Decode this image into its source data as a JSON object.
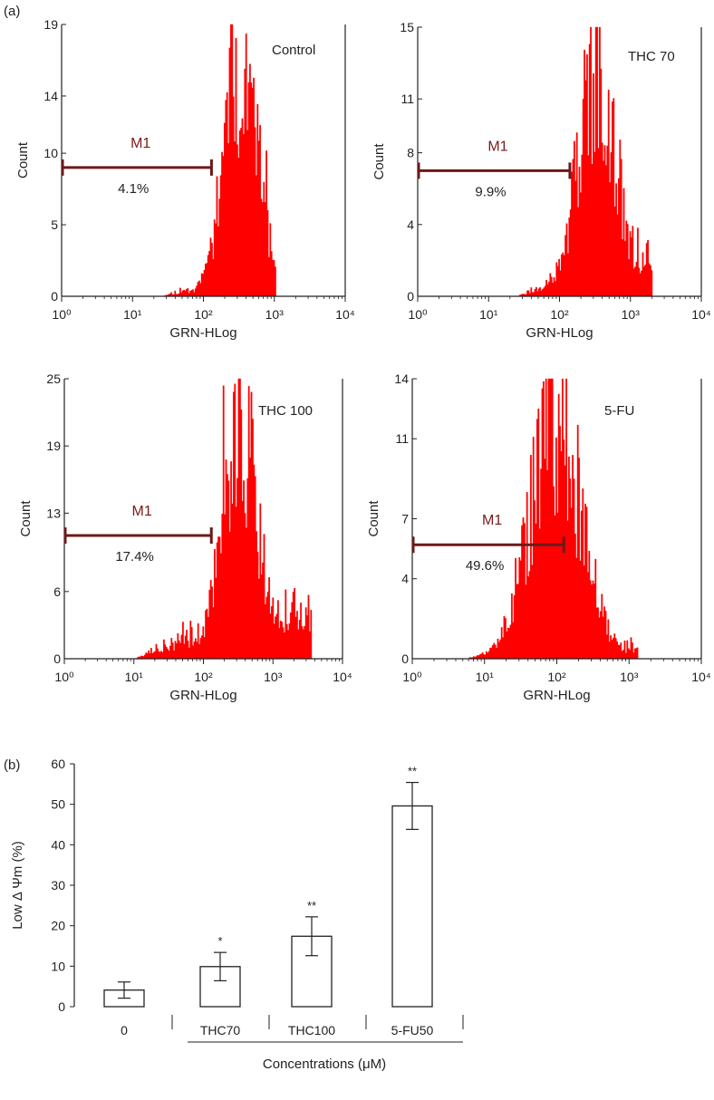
{
  "panel_labels": {
    "a": "(a)",
    "b": "(b)"
  },
  "colors": {
    "histogram": "#ff0000",
    "marker": "#6b1a1a",
    "axis": "#222222"
  },
  "chart_data": [
    {
      "type": "histogram",
      "title": "Control",
      "xlabel": "GRN-HLog",
      "ylabel": "Count",
      "xscale": "log",
      "xlim": [
        1,
        10000
      ],
      "x_ticks": [
        "10⁰",
        "10¹",
        "10²",
        "10³",
        "10⁴"
      ],
      "ylim": [
        0,
        19
      ],
      "y_ticks": [
        0,
        5,
        10,
        14,
        19
      ],
      "marker": {
        "label": "M1",
        "x_start": 1,
        "x_end": 130,
        "level": 9,
        "percent": "4.1%"
      },
      "distribution": {
        "peak_x": 330,
        "log_sd": 0.24,
        "peak_count": 17.5,
        "low_tail_from": 25,
        "high_cut": 1050,
        "low_tail_max": 2.2,
        "seed": 11
      }
    },
    {
      "type": "histogram",
      "title": "THC 70",
      "xlabel": "GRN-HLog",
      "ylabel": "Count",
      "xscale": "log",
      "xlim": [
        1,
        10000
      ],
      "x_ticks": [
        "10⁰",
        "10¹",
        "10²",
        "10³",
        "10⁴"
      ],
      "ylim": [
        0,
        15
      ],
      "y_ticks": [
        0,
        4,
        8,
        11,
        15
      ],
      "marker": {
        "label": "M1",
        "x_start": 1,
        "x_end": 140,
        "level": 7,
        "percent": "9.9%"
      },
      "distribution": {
        "peak_x": 330,
        "log_sd": 0.27,
        "peak_count": 13.5,
        "low_tail_from": 25,
        "high_cut": 2000,
        "low_tail_max": 3.0,
        "seed": 23
      }
    },
    {
      "type": "histogram",
      "title": "THC 100",
      "xlabel": "GRN-HLog",
      "ylabel": "Count",
      "xscale": "log",
      "xlim": [
        1,
        10000
      ],
      "x_ticks": [
        "10⁰",
        "10¹",
        "10²",
        "10³",
        "10⁴"
      ],
      "ylim": [
        0,
        25
      ],
      "y_ticks": [
        0,
        6,
        13,
        19,
        25
      ],
      "marker": {
        "label": "M1",
        "x_start": 1,
        "x_end": 130,
        "level": 11,
        "percent": "17.4%"
      },
      "distribution": {
        "peak_x": 330,
        "log_sd": 0.25,
        "peak_count": 22,
        "low_tail_from": 10,
        "high_cut": 3500,
        "low_tail_max": 5.5,
        "seed": 37
      }
    },
    {
      "type": "histogram",
      "title": "5-FU",
      "xlabel": "GRN-HLog",
      "ylabel": "Count",
      "xscale": "log",
      "xlim": [
        1,
        10000
      ],
      "x_ticks": [
        "10⁰",
        "10¹",
        "10²",
        "10³",
        "10⁴"
      ],
      "ylim": [
        0,
        14
      ],
      "y_ticks": [
        0,
        4,
        7,
        11,
        14
      ],
      "marker": {
        "label": "M1",
        "x_start": 1,
        "x_end": 125,
        "level": 5.7,
        "percent": "49.6%"
      },
      "distribution": {
        "peak_x": 95,
        "log_sd": 0.36,
        "peak_count": 12.5,
        "low_tail_from": 6,
        "high_cut": 1300,
        "low_tail_max": 1.0,
        "seed": 51
      }
    },
    {
      "type": "bar",
      "title": "",
      "categories": [
        "0",
        "THC70",
        "THC100",
        "5-FU50"
      ],
      "values": [
        4.1,
        9.9,
        17.4,
        49.6
      ],
      "errors": [
        2.0,
        3.5,
        4.8,
        5.8
      ],
      "significance": [
        "",
        "*",
        "**",
        "**"
      ],
      "xlabel": "Concentrations (μM)",
      "ylabel": "Low Δ Ψm (%)",
      "ylim": [
        0,
        60
      ],
      "y_ticks": [
        0,
        10,
        20,
        30,
        40,
        50,
        60
      ]
    }
  ]
}
